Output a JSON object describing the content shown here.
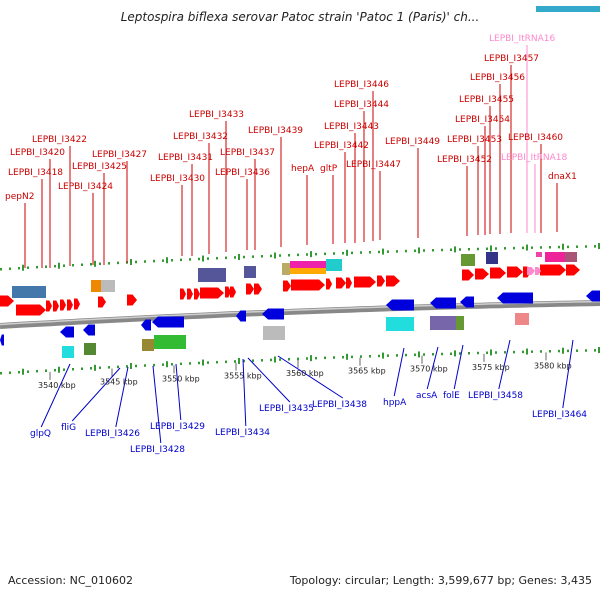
{
  "title": "Leptospira biflexa serovar Patoc strain 'Patoc 1 (Paris)' ch...",
  "footer": {
    "accession": "Accession: NC_010602",
    "summary": "Topology: circular; Length: 3,599,677 bp; Genes: 3,435"
  },
  "kbp_ticks": [
    "3540 kbp",
    "3545 kbp",
    "3550 kbp",
    "3555 kbp",
    "3560 kbp",
    "3565 kbp",
    "3570 kbp",
    "3575 kbp",
    "3580 kbp"
  ],
  "top_labels": [
    {
      "text": "pepN2",
      "color": "red"
    },
    {
      "text": "LEPBI_I3418",
      "color": "red"
    },
    {
      "text": "LEPBI_I3420",
      "color": "red"
    },
    {
      "text": "LEPBI_I3422",
      "color": "red"
    },
    {
      "text": "LEPBI_I3424",
      "color": "red"
    },
    {
      "text": "LEPBI_I3425",
      "color": "red"
    },
    {
      "text": "LEPBI_I3427",
      "color": "red"
    },
    {
      "text": "LEPBI_I3430",
      "color": "red"
    },
    {
      "text": "LEPBI_I3431",
      "color": "red"
    },
    {
      "text": "LEPBI_I3432",
      "color": "red"
    },
    {
      "text": "LEPBI_I3433",
      "color": "red"
    },
    {
      "text": "LEPBI_I3436",
      "color": "red"
    },
    {
      "text": "LEPBI_I3437",
      "color": "red"
    },
    {
      "text": "LEPBI_I3439",
      "color": "red"
    },
    {
      "text": "hepA",
      "color": "red"
    },
    {
      "text": "gltP",
      "color": "red"
    },
    {
      "text": "LEPBI_I3442",
      "color": "red"
    },
    {
      "text": "LEPBI_I3443",
      "color": "red"
    },
    {
      "text": "LEPBI_I3444",
      "color": "red"
    },
    {
      "text": "LEPBI_I3446",
      "color": "red"
    },
    {
      "text": "LEPBI_I3447",
      "color": "red"
    },
    {
      "text": "LEPBI_I3449",
      "color": "red"
    },
    {
      "text": "LEPBI_I3452",
      "color": "red"
    },
    {
      "text": "LEPBI_I3453",
      "color": "red"
    },
    {
      "text": "LEPBI_I3454",
      "color": "red"
    },
    {
      "text": "LEPBI_I3455",
      "color": "red"
    },
    {
      "text": "LEPBI_I3456",
      "color": "red"
    },
    {
      "text": "LEPBI_I3457",
      "color": "red"
    },
    {
      "text": "LEPBI_ItRNA16",
      "color": "pink"
    },
    {
      "text": "LEPBI_ItRNA18",
      "color": "pink"
    },
    {
      "text": "LEPBI_I3460",
      "color": "red"
    },
    {
      "text": "dnaX1",
      "color": "red"
    }
  ],
  "bottom_labels": [
    {
      "text": "glpQ",
      "color": "blue"
    },
    {
      "text": "fliG",
      "color": "blue"
    },
    {
      "text": "LEPBI_I3426",
      "color": "blue"
    },
    {
      "text": "LEPBI_I3428",
      "color": "blue"
    },
    {
      "text": "LEPBI_I3429",
      "color": "blue"
    },
    {
      "text": "LEPBI_I3434",
      "color": "blue"
    },
    {
      "text": "LEPBI_I3435",
      "color": "blue"
    },
    {
      "text": "LEPBI_I3438",
      "color": "blue"
    },
    {
      "text": "hppA",
      "color": "blue"
    },
    {
      "text": "acsA",
      "color": "blue"
    },
    {
      "text": "folE",
      "color": "blue"
    },
    {
      "text": "LEPBI_I3458",
      "color": "blue"
    },
    {
      "text": "LEPBI_I3464",
      "color": "blue"
    }
  ],
  "colors": {
    "forward_gene": "#ff0000",
    "reverse_gene": "#0000dd",
    "top_label": "#cc0000",
    "bottom_label": "#0000cc",
    "trna_label": "#ff88cc",
    "tick": "#339933",
    "backbone": "#888888"
  }
}
